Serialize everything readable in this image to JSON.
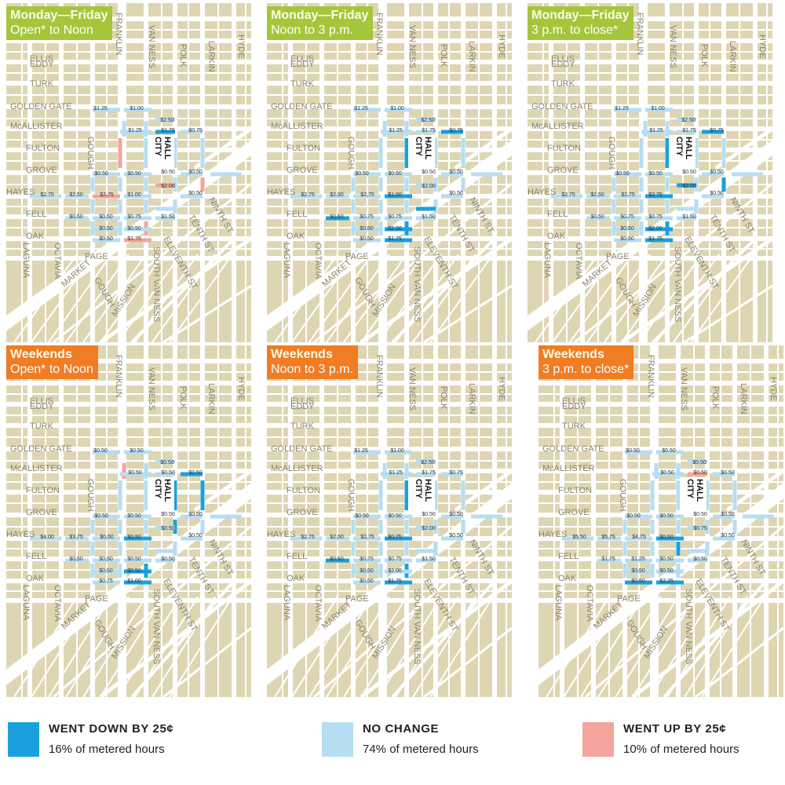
{
  "colors": {
    "down": "#1aa0dd",
    "same": "#b6def2",
    "up": "#f3a59b",
    "block": "#ded6b3",
    "road": "#ffffff",
    "weekday_header": "#a5c63a",
    "weekend_header": "#f07c23"
  },
  "streets": {
    "ellis": "ELLIS",
    "eddy": "EDDY",
    "turk": "TURK",
    "golden_gate": "GOLDEN GATE",
    "mcallister": "McALLISTER",
    "fulton": "FULTON",
    "grove": "GROVE",
    "hayes": "HAYES",
    "fell": "FELL",
    "oak": "OAK",
    "page": "PAGE",
    "laguna": "LAGUNA",
    "octavia": "OCTAVIA",
    "gough": "GOUGH",
    "franklin": "FRANKLIN",
    "van_ness": "VAN NESS",
    "polk": "POLK",
    "larkin": "LARKIN",
    "hyde": "HYDE",
    "market": "MARKET",
    "mission": "MISSION",
    "south_van_ness": "SOUTH VAN NESS",
    "ninth": "NINTH ST",
    "tenth": "TENTH ST",
    "eleventh": "ELEVENTH ST",
    "city": "CITY",
    "hall": "HALL"
  },
  "panels": [
    {
      "header": {
        "line1": "Monday—Friday",
        "line2": "Open* to Noon",
        "kind": "weekday"
      },
      "prices": [
        {
          "text": "$1.25",
          "x": 120,
          "y": 132
        },
        {
          "text": "$1.00",
          "x": 166,
          "y": 132
        },
        {
          "text": "$2.50",
          "x": 205,
          "y": 147
        },
        {
          "text": "$1.25",
          "x": 164,
          "y": 160
        },
        {
          "text": "$1.75",
          "x": 206,
          "y": 160
        },
        {
          "text": "$0.75",
          "x": 241,
          "y": 160
        },
        {
          "text": "$0.50",
          "x": 121,
          "y": 215
        },
        {
          "text": "$0.50",
          "x": 163,
          "y": 215
        },
        {
          "text": "$0.50",
          "x": 206,
          "y": 213
        },
        {
          "text": "$0.50",
          "x": 241,
          "y": 213
        },
        {
          "text": "$2.75",
          "x": 52,
          "y": 242
        },
        {
          "text": "$2.50",
          "x": 89,
          "y": 242
        },
        {
          "text": "$2.75",
          "x": 128,
          "y": 242
        },
        {
          "text": "$1.00",
          "x": 163,
          "y": 242
        },
        {
          "text": "$2.00",
          "x": 206,
          "y": 231
        },
        {
          "text": "$0.50",
          "x": 241,
          "y": 240
        },
        {
          "text": "$0.50",
          "x": 89,
          "y": 270
        },
        {
          "text": "$0.50",
          "x": 127,
          "y": 270
        },
        {
          "text": "$0.75",
          "x": 163,
          "y": 270
        },
        {
          "text": "$1.50",
          "x": 206,
          "y": 270
        },
        {
          "text": "$0.50",
          "x": 127,
          "y": 285
        },
        {
          "text": "$0.50",
          "x": 163,
          "y": 285
        },
        {
          "text": "$0.50",
          "x": 127,
          "y": 298
        },
        {
          "text": "$1.75",
          "x": 163,
          "y": 298
        }
      ]
    },
    {
      "header": {
        "line1": "Monday—Friday",
        "line2": "Noon to 3 p.m.",
        "kind": "weekday"
      },
      "prices": [
        {
          "text": "$1.25",
          "x": 120,
          "y": 132
        },
        {
          "text": "$1.00",
          "x": 166,
          "y": 132
        },
        {
          "text": "$2.50",
          "x": 205,
          "y": 147
        },
        {
          "text": "$1.25",
          "x": 164,
          "y": 160
        },
        {
          "text": "$1.75",
          "x": 206,
          "y": 160
        },
        {
          "text": "$0.75",
          "x": 241,
          "y": 160
        },
        {
          "text": "$0.50",
          "x": 121,
          "y": 215
        },
        {
          "text": "$0.50",
          "x": 163,
          "y": 215
        },
        {
          "text": "$0.50",
          "x": 206,
          "y": 213
        },
        {
          "text": "$0.50",
          "x": 241,
          "y": 213
        },
        {
          "text": "$2.75",
          "x": 52,
          "y": 242
        },
        {
          "text": "$2.50",
          "x": 89,
          "y": 242
        },
        {
          "text": "$2.75",
          "x": 128,
          "y": 242
        },
        {
          "text": "$1.00",
          "x": 163,
          "y": 242
        },
        {
          "text": "$2.00",
          "x": 206,
          "y": 231
        },
        {
          "text": "$0.50",
          "x": 241,
          "y": 240
        },
        {
          "text": "$0.50",
          "x": 89,
          "y": 270
        },
        {
          "text": "$0.75",
          "x": 127,
          "y": 270
        },
        {
          "text": "$0.75",
          "x": 163,
          "y": 270
        },
        {
          "text": "$1.50",
          "x": 206,
          "y": 270
        },
        {
          "text": "$0.50",
          "x": 127,
          "y": 285
        },
        {
          "text": "$2.00",
          "x": 163,
          "y": 285
        },
        {
          "text": "$0.50",
          "x": 127,
          "y": 298
        },
        {
          "text": "$1.75",
          "x": 163,
          "y": 298
        }
      ]
    },
    {
      "header": {
        "line1": "Monday—Friday",
        "line2": "3 p.m. to close*",
        "kind": "weekday"
      },
      "prices": [
        {
          "text": "$1.25",
          "x": 120,
          "y": 132
        },
        {
          "text": "$1.00",
          "x": 166,
          "y": 132
        },
        {
          "text": "$2.50",
          "x": 205,
          "y": 147
        },
        {
          "text": "$1.25",
          "x": 164,
          "y": 160
        },
        {
          "text": "$1.75",
          "x": 206,
          "y": 160
        },
        {
          "text": "$0.75",
          "x": 241,
          "y": 160
        },
        {
          "text": "$0.50",
          "x": 121,
          "y": 215
        },
        {
          "text": "$0.50",
          "x": 163,
          "y": 215
        },
        {
          "text": "$0.50",
          "x": 206,
          "y": 213
        },
        {
          "text": "$0.50",
          "x": 241,
          "y": 213
        },
        {
          "text": "$2.75",
          "x": 52,
          "y": 242
        },
        {
          "text": "$2.50",
          "x": 89,
          "y": 242
        },
        {
          "text": "$2.75",
          "x": 128,
          "y": 242
        },
        {
          "text": "$2.75",
          "x": 163,
          "y": 242
        },
        {
          "text": "$2.00",
          "x": 206,
          "y": 231
        },
        {
          "text": "$0.50",
          "x": 241,
          "y": 240
        },
        {
          "text": "$0.50",
          "x": 89,
          "y": 270
        },
        {
          "text": "$0.75",
          "x": 127,
          "y": 270
        },
        {
          "text": "$0.75",
          "x": 163,
          "y": 270
        },
        {
          "text": "$1.50",
          "x": 206,
          "y": 270
        },
        {
          "text": "$0.50",
          "x": 127,
          "y": 285
        },
        {
          "text": "$2.00",
          "x": 163,
          "y": 285
        },
        {
          "text": "$0.50",
          "x": 127,
          "y": 298
        },
        {
          "text": "$1.75",
          "x": 163,
          "y": 298
        }
      ]
    },
    {
      "header": {
        "line1": "Weekends",
        "line2": "Open* to Noon",
        "kind": "weekend"
      },
      "prices": [
        {
          "text": "$0.50",
          "x": 120,
          "y": 132
        },
        {
          "text": "$0.50",
          "x": 166,
          "y": 132
        },
        {
          "text": "$0.50",
          "x": 205,
          "y": 147
        },
        {
          "text": "$0.50",
          "x": 164,
          "y": 160
        },
        {
          "text": "$0.50",
          "x": 206,
          "y": 160
        },
        {
          "text": "$0.50",
          "x": 241,
          "y": 160
        },
        {
          "text": "$0.50",
          "x": 121,
          "y": 215
        },
        {
          "text": "$0.50",
          "x": 163,
          "y": 215
        },
        {
          "text": "$0.50",
          "x": 206,
          "y": 213
        },
        {
          "text": "$0.50",
          "x": 241,
          "y": 213
        },
        {
          "text": "$4.00",
          "x": 52,
          "y": 242
        },
        {
          "text": "$3.75",
          "x": 89,
          "y": 242
        },
        {
          "text": "$0.50",
          "x": 128,
          "y": 242
        },
        {
          "text": "$0.50",
          "x": 163,
          "y": 242
        },
        {
          "text": "$0.50",
          "x": 206,
          "y": 231
        },
        {
          "text": "$0.50",
          "x": 241,
          "y": 240
        },
        {
          "text": "$0.50",
          "x": 89,
          "y": 270
        },
        {
          "text": "$0.50",
          "x": 127,
          "y": 270
        },
        {
          "text": "$0.50",
          "x": 163,
          "y": 270
        },
        {
          "text": "$0.50",
          "x": 206,
          "y": 270
        },
        {
          "text": "$0.50",
          "x": 127,
          "y": 285
        },
        {
          "text": "$0.50",
          "x": 163,
          "y": 285
        },
        {
          "text": "$0.75",
          "x": 127,
          "y": 298
        },
        {
          "text": "$1.00",
          "x": 163,
          "y": 298
        }
      ]
    },
    {
      "header": {
        "line1": "Weekends",
        "line2": "Noon to 3 p.m.",
        "kind": "weekend"
      },
      "prices": [
        {
          "text": "$1.25",
          "x": 120,
          "y": 132
        },
        {
          "text": "$1.00",
          "x": 166,
          "y": 132
        },
        {
          "text": "$2.50",
          "x": 205,
          "y": 147
        },
        {
          "text": "$1.25",
          "x": 164,
          "y": 160
        },
        {
          "text": "$1.75",
          "x": 206,
          "y": 160
        },
        {
          "text": "$0.75",
          "x": 241,
          "y": 160
        },
        {
          "text": "$0.50",
          "x": 121,
          "y": 215
        },
        {
          "text": "$0.50",
          "x": 163,
          "y": 215
        },
        {
          "text": "$0.50",
          "x": 206,
          "y": 213
        },
        {
          "text": "$0.50",
          "x": 241,
          "y": 213
        },
        {
          "text": "$2.75",
          "x": 52,
          "y": 242
        },
        {
          "text": "$2.50",
          "x": 89,
          "y": 242
        },
        {
          "text": "$2.75",
          "x": 128,
          "y": 242
        },
        {
          "text": "$0.75",
          "x": 163,
          "y": 242
        },
        {
          "text": "$2.00",
          "x": 206,
          "y": 231
        },
        {
          "text": "$0.50",
          "x": 241,
          "y": 240
        },
        {
          "text": "$0.50",
          "x": 89,
          "y": 270
        },
        {
          "text": "$0.75",
          "x": 127,
          "y": 270
        },
        {
          "text": "$0.75",
          "x": 163,
          "y": 270
        },
        {
          "text": "$1.50",
          "x": 206,
          "y": 270
        },
        {
          "text": "$0.50",
          "x": 127,
          "y": 285
        },
        {
          "text": "$2.00",
          "x": 163,
          "y": 285
        },
        {
          "text": "$0.50",
          "x": 127,
          "y": 298
        },
        {
          "text": "$1.75",
          "x": 163,
          "y": 298
        }
      ]
    },
    {
      "header": {
        "line1": "Weekends",
        "line2": "3 p.m. to close*",
        "kind": "weekend"
      },
      "prices": [
        {
          "text": "$0.50",
          "x": 120,
          "y": 132
        },
        {
          "text": "$0.50",
          "x": 166,
          "y": 132
        },
        {
          "text": "$0.50",
          "x": 205,
          "y": 147
        },
        {
          "text": "$0.50",
          "x": 164,
          "y": 160
        },
        {
          "text": "$0.50",
          "x": 206,
          "y": 160
        },
        {
          "text": "$0.50",
          "x": 241,
          "y": 160
        },
        {
          "text": "$0.50",
          "x": 121,
          "y": 215
        },
        {
          "text": "$0.50",
          "x": 163,
          "y": 215
        },
        {
          "text": "$0.50",
          "x": 206,
          "y": 213
        },
        {
          "text": "$0.50",
          "x": 241,
          "y": 213
        },
        {
          "text": "$5.50",
          "x": 52,
          "y": 242
        },
        {
          "text": "$5.75",
          "x": 89,
          "y": 242
        },
        {
          "text": "$4.75",
          "x": 128,
          "y": 242
        },
        {
          "text": "$0.50",
          "x": 163,
          "y": 242
        },
        {
          "text": "$0.75",
          "x": 206,
          "y": 231
        },
        {
          "text": "$0.50",
          "x": 241,
          "y": 240
        },
        {
          "text": "$1.75",
          "x": 89,
          "y": 270
        },
        {
          "text": "$1.25",
          "x": 127,
          "y": 270
        },
        {
          "text": "$0.50",
          "x": 163,
          "y": 270
        },
        {
          "text": "$0.50",
          "x": 206,
          "y": 270
        },
        {
          "text": "$0.50",
          "x": 127,
          "y": 285
        },
        {
          "text": "$0.50",
          "x": 163,
          "y": 285
        },
        {
          "text": "$0.50",
          "x": 127,
          "y": 298
        },
        {
          "text": "$2.25",
          "x": 163,
          "y": 298
        }
      ]
    }
  ],
  "legend": [
    {
      "title": "WENT DOWN BY 25¢",
      "subtitle": "16% of metered hours",
      "color": "#1aa0dd"
    },
    {
      "title": "NO CHANGE",
      "subtitle": "74% of metered hours",
      "color": "#b6def2"
    },
    {
      "title": "WENT UP BY 25¢",
      "subtitle": "10% of metered hours",
      "color": "#f3a59b"
    }
  ]
}
